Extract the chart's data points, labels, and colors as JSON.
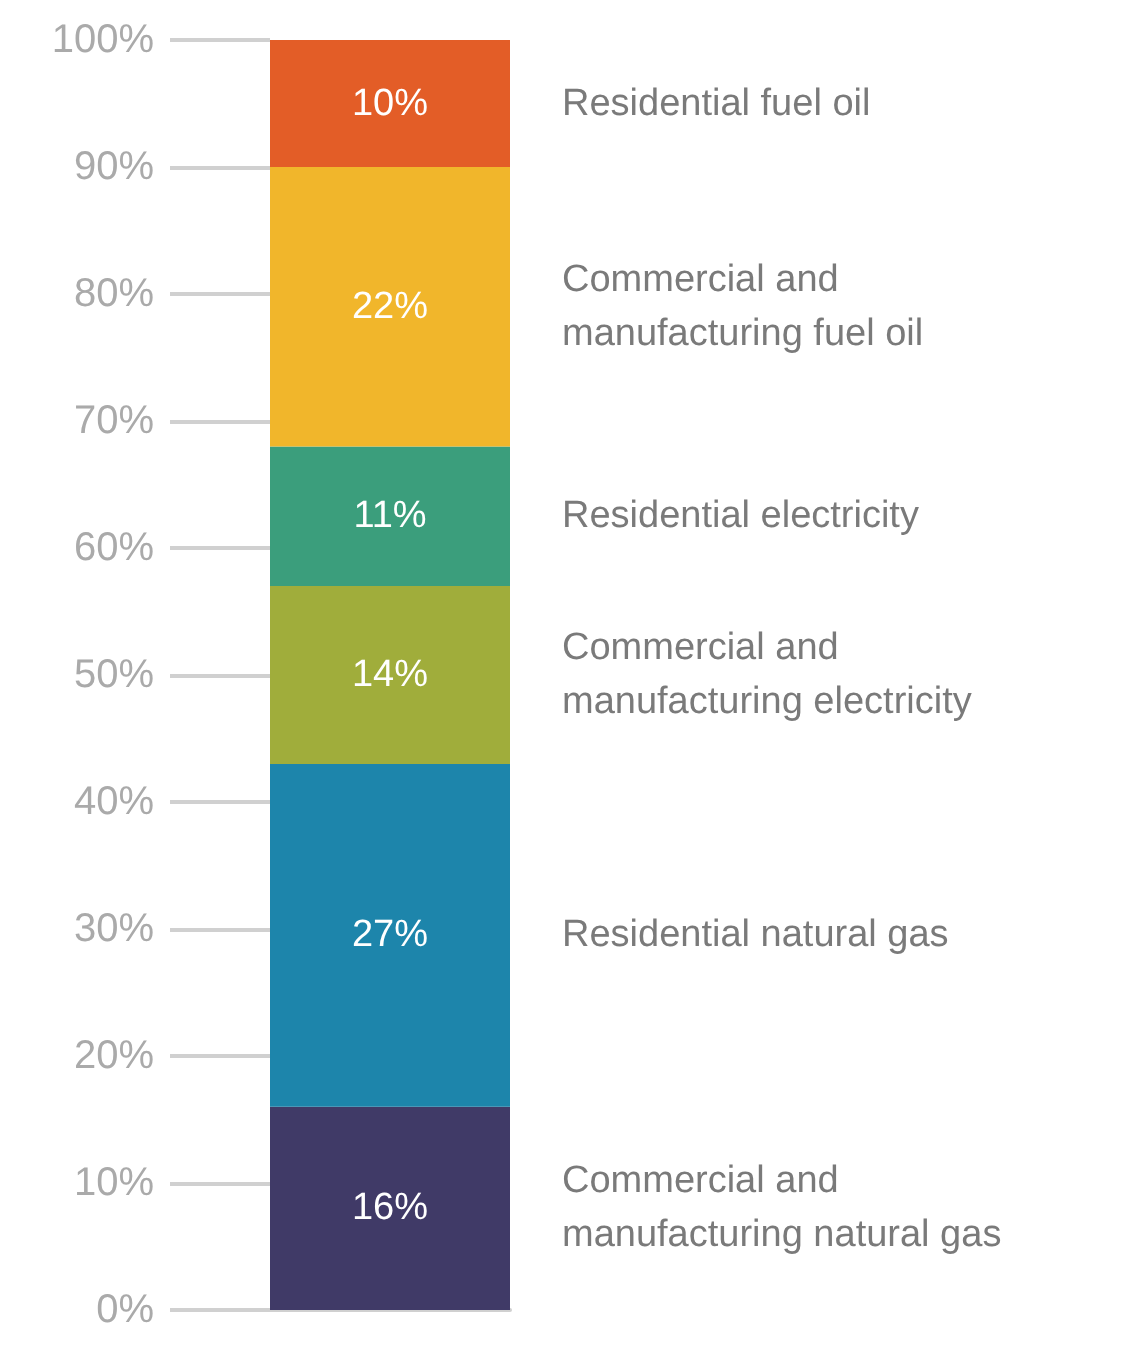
{
  "chart_data": {
    "type": "bar",
    "stacked": true,
    "categories": [
      null
    ],
    "series": [
      {
        "name": "Commercial and manufacturing natural gas",
        "color": "#403a67",
        "values": [
          16
        ],
        "value_labels": [
          "16%"
        ]
      },
      {
        "name": "Residential natural gas",
        "color": "#1d85ab",
        "values": [
          27
        ],
        "value_labels": [
          "27%"
        ]
      },
      {
        "name": "Commercial and manufacturing electricity",
        "color": "#a0ad3b",
        "values": [
          14
        ],
        "value_labels": [
          "14%"
        ]
      },
      {
        "name": "Residential electricity",
        "color": "#3b9e7c",
        "values": [
          11
        ],
        "value_labels": [
          "11%"
        ]
      },
      {
        "name": "Commercial and manufacturing fuel oil",
        "color": "#f1b62b",
        "values": [
          22
        ],
        "value_labels": [
          "22%"
        ]
      },
      {
        "name": "Residential fuel oil",
        "color": "#e35d27",
        "values": [
          10
        ],
        "value_labels": [
          "10%"
        ]
      }
    ],
    "ylim": [
      0,
      100
    ],
    "yticks": [
      {
        "value": 0,
        "label": "0%"
      },
      {
        "value": 10,
        "label": "10%"
      },
      {
        "value": 20,
        "label": "20%"
      },
      {
        "value": 30,
        "label": "30%"
      },
      {
        "value": 40,
        "label": "40%"
      },
      {
        "value": 50,
        "label": "50%"
      },
      {
        "value": 60,
        "label": "60%"
      },
      {
        "value": 70,
        "label": "70%"
      },
      {
        "value": 80,
        "label": "80%"
      },
      {
        "value": 90,
        "label": "90%"
      },
      {
        "value": 100,
        "label": "100%"
      }
    ],
    "legend": "right"
  }
}
